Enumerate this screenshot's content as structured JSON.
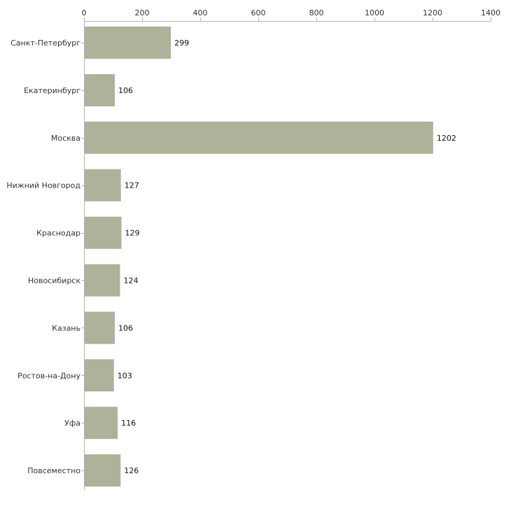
{
  "chart_data": {
    "type": "bar",
    "orientation": "horizontal",
    "title": "",
    "xlabel": "",
    "ylabel": "",
    "xlim": [
      0,
      1400
    ],
    "x_ticks": [
      0,
      200,
      400,
      600,
      800,
      1000,
      1200,
      1400
    ],
    "x_axis_position": "top",
    "grid": false,
    "legend": "none",
    "bar_color": "#adb399",
    "categories": [
      "Санкт-Петербург",
      "Екатеринбург",
      "Москва",
      "Нижний Новгород",
      "Краснодар",
      "Новосибирск",
      "Казань",
      "Ростов-на-Дону",
      "Уфа",
      "Повсеместно"
    ],
    "values": [
      299,
      106,
      1202,
      127,
      129,
      124,
      106,
      103,
      116,
      126
    ]
  }
}
